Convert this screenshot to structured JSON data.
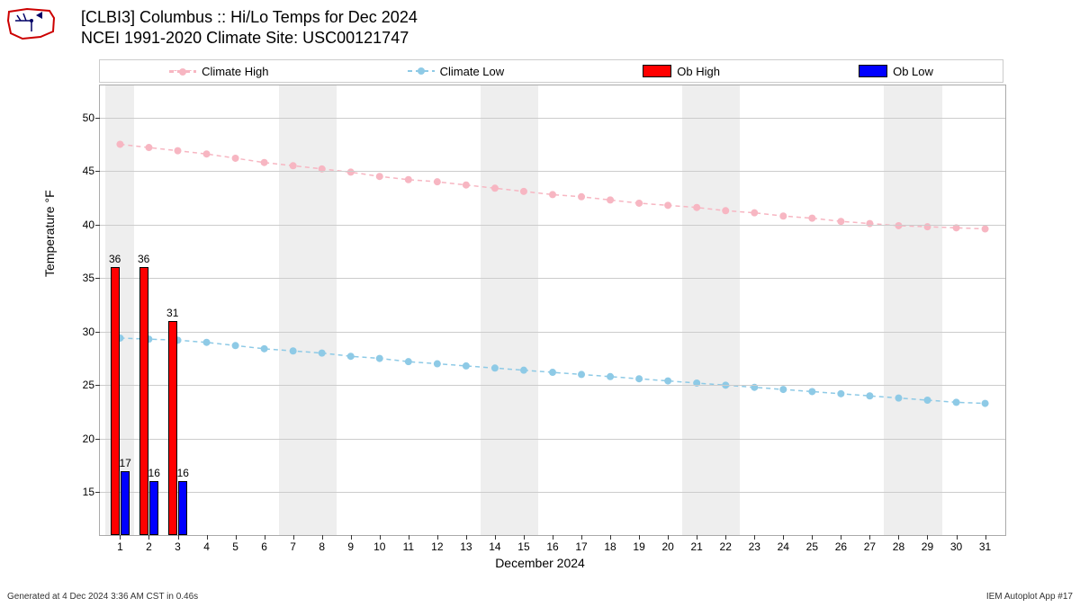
{
  "title": {
    "line1": "[CLBI3] Columbus :: Hi/Lo Temps for Dec 2024",
    "line2": "NCEI 1991-2020 Climate Site: USC00121747"
  },
  "legend": {
    "climate_high": "Climate High",
    "climate_low": "Climate Low",
    "ob_high": "Ob High",
    "ob_low": "Ob Low"
  },
  "colors": {
    "climate_high": "#f7b6c2",
    "climate_low": "#8ecae6",
    "ob_high": "#ff0000",
    "ob_low": "#0000ff",
    "grid": "#cccccc",
    "weekend": "#eeeeee",
    "border": "#aaaaaa",
    "background": "#ffffff"
  },
  "axes": {
    "ylabel": "Temperature °F",
    "xlabel": "December 2024",
    "ylim": [
      11,
      53
    ],
    "yticks": [
      15,
      20,
      25,
      30,
      35,
      40,
      45,
      50
    ],
    "xlim": [
      0.3,
      31.7
    ],
    "xticks": [
      1,
      2,
      3,
      4,
      5,
      6,
      7,
      8,
      9,
      10,
      11,
      12,
      13,
      14,
      15,
      16,
      17,
      18,
      19,
      20,
      21,
      22,
      23,
      24,
      25,
      26,
      27,
      28,
      29,
      30,
      31
    ]
  },
  "weekends": [
    [
      1,
      1
    ],
    [
      7,
      8
    ],
    [
      14,
      15
    ],
    [
      21,
      22
    ],
    [
      28,
      29
    ]
  ],
  "climate_high": [
    47.5,
    47.2,
    46.9,
    46.6,
    46.2,
    45.8,
    45.5,
    45.2,
    44.9,
    44.5,
    44.2,
    44.0,
    43.7,
    43.4,
    43.1,
    42.8,
    42.6,
    42.3,
    42.0,
    41.8,
    41.6,
    41.3,
    41.1,
    40.8,
    40.6,
    40.3,
    40.1,
    39.9,
    39.8,
    39.7,
    39.6
  ],
  "climate_low": [
    29.4,
    29.3,
    29.2,
    29.0,
    28.7,
    28.4,
    28.2,
    28.0,
    27.7,
    27.5,
    27.2,
    27.0,
    26.8,
    26.6,
    26.4,
    26.2,
    26.0,
    25.8,
    25.6,
    25.4,
    25.2,
    25.0,
    24.8,
    24.6,
    24.4,
    24.2,
    24.0,
    23.8,
    23.6,
    23.4,
    23.3
  ],
  "ob_high": [
    {
      "day": 1,
      "value": 36
    },
    {
      "day": 2,
      "value": 36
    },
    {
      "day": 3,
      "value": 31
    }
  ],
  "ob_low": [
    {
      "day": 1,
      "value": 17
    },
    {
      "day": 2,
      "value": 16
    },
    {
      "day": 3,
      "value": 16
    }
  ],
  "bar_width": 0.32,
  "footer": {
    "left": "Generated at 4 Dec 2024 3:36 AM CST in 0.46s",
    "right": "IEM Autoplot App #17"
  },
  "styling": {
    "line_width": 1.5,
    "line_dash": "5,4",
    "marker_radius": 4,
    "title_fontsize": 18,
    "label_fontsize": 14,
    "tick_fontsize": 12
  }
}
